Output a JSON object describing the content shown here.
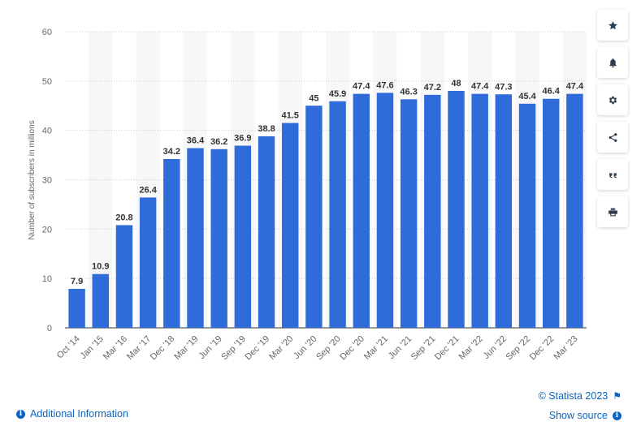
{
  "chart_data": {
    "type": "bar",
    "title": "",
    "xlabel": "",
    "ylabel": "Number of subscribers in millions",
    "ylim": [
      0,
      60
    ],
    "yticks": [
      0,
      10,
      20,
      30,
      40,
      50,
      60
    ],
    "grid": true,
    "categories": [
      "Oct '14",
      "Jan '15",
      "Mar '16",
      "Mar '17",
      "Dec '18",
      "Mar '19",
      "Jun '19",
      "Sep '19",
      "Dec '19",
      "Mar '20",
      "Jun '20",
      "Sep '20",
      "Dec '20",
      "Mar '21",
      "Jun '21",
      "Sep '21",
      "Dec '21",
      "Mar '22",
      "Jun '22",
      "Sep '22",
      "Dec '22",
      "Mar '23"
    ],
    "values": [
      7.9,
      10.9,
      20.8,
      26.4,
      34.2,
      36.4,
      36.2,
      36.9,
      38.8,
      41.5,
      45,
      45.9,
      47.4,
      47.6,
      46.3,
      47.2,
      48,
      47.4,
      47.3,
      45.4,
      46.4,
      47.4
    ],
    "bar_color": "#2f6bd9"
  },
  "toolbar": {
    "buttons": [
      {
        "name": "favorite-button",
        "icon": "star-icon"
      },
      {
        "name": "notification-button",
        "icon": "bell-icon"
      },
      {
        "name": "settings-button",
        "icon": "gear-icon"
      },
      {
        "name": "share-button",
        "icon": "share-icon"
      },
      {
        "name": "cite-button",
        "icon": "quote-icon"
      },
      {
        "name": "print-button",
        "icon": "printer-icon"
      }
    ]
  },
  "footer": {
    "additional_info": "Additional Information",
    "credit": "© Statista 2023",
    "show_source": "Show source"
  },
  "colors": {
    "accent": "#0b63c2",
    "bar": "#2f6bd9",
    "band": "#f7f7f7"
  }
}
